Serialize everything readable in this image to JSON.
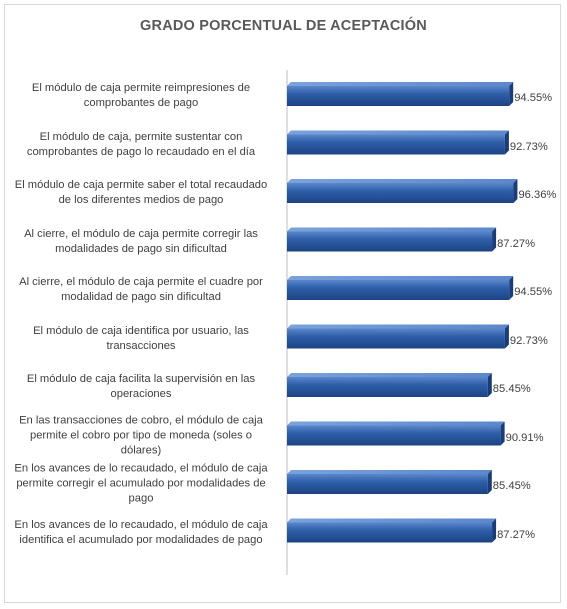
{
  "chart_data": {
    "type": "bar",
    "orientation": "horizontal",
    "title": "GRADO PORCENTUAL DE ACEPTACIÓN",
    "xlabel": "",
    "ylabel": "",
    "xlim": [
      0,
      100
    ],
    "grid": false,
    "legend": "none",
    "bar_color": "#2e5ea8",
    "categories": [
      "El módulo de caja permite reimpresiones de comprobantes de pago",
      "El módulo de caja, permite sustentar con comprobantes de pago lo recaudado en el día",
      "El módulo de caja permite saber el total recaudado de los diferentes medios de pago",
      "Al cierre, el módulo de caja permite corregir las modalidades de pago sin dificultad",
      "Al cierre, el módulo de caja permite el cuadre por modalidad de pago sin dificultad",
      "El módulo de caja identifica por usuario, las transacciones",
      "El módulo de caja facilita la supervisión en las operaciones",
      "En las transacciones de cobro, el módulo de caja permite el cobro por tipo de moneda (soles o dólares)",
      "En los avances de lo recaudado, el módulo de caja permite corregir el acumulado por modalidades de pago",
      "En los avances de lo recaudado, el módulo de caja identifica el acumulado por modalidades de pago"
    ],
    "values": [
      94.55,
      92.73,
      96.36,
      87.27,
      94.55,
      92.73,
      85.45,
      90.91,
      85.45,
      87.27
    ],
    "value_labels": [
      "94.55%",
      "92.73%",
      "96.36%",
      "87.27%",
      "94.55%",
      "92.73%",
      "85.45%",
      "90.91%",
      "85.45%",
      "87.27%"
    ]
  }
}
